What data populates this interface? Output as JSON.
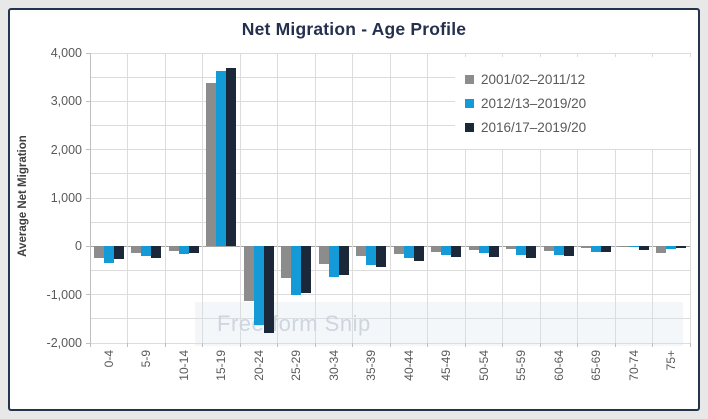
{
  "overlay": {
    "watermark": "Free-form Snip"
  },
  "chart_data": {
    "type": "bar",
    "title": "Net Migration - Age Profile",
    "ylabel": "Average Net Migration",
    "xlabel": "",
    "ylim": [
      -2000,
      4000
    ],
    "ytick_interval": 1000,
    "minor_grid_interval": 500,
    "grid": true,
    "legend_position": "top-right",
    "yticks": [
      {
        "value": 4000,
        "label": "4,000"
      },
      {
        "value": 3000,
        "label": "3,000"
      },
      {
        "value": 2000,
        "label": "2,000"
      },
      {
        "value": 1000,
        "label": "1,000"
      },
      {
        "value": 0,
        "label": "0"
      },
      {
        "value": -1000,
        "label": "-1,000"
      },
      {
        "value": -2000,
        "label": "-2,000"
      }
    ],
    "categories": [
      "0-4",
      "5-9",
      "10-14",
      "15-19",
      "20-24",
      "25-29",
      "30-34",
      "35-39",
      "40-44",
      "45-49",
      "50-54",
      "55-59",
      "60-64",
      "65-69",
      "70-74",
      "75+"
    ],
    "series": [
      {
        "name": "2001/02–2011/12",
        "color": "#8c8c8c",
        "values": [
          -240,
          -130,
          -100,
          3370,
          -1130,
          -650,
          -360,
          -210,
          -150,
          -110,
          -70,
          -60,
          -90,
          -40,
          -20,
          -130
        ]
      },
      {
        "name": "2012/13–2019/20",
        "color": "#149ad7",
        "values": [
          -350,
          -200,
          -150,
          3620,
          -1630,
          -1000,
          -640,
          -390,
          -250,
          -170,
          -130,
          -170,
          -170,
          -110,
          -20,
          -60
        ]
      },
      {
        "name": "2016/17–2019/20",
        "color": "#1b2839",
        "values": [
          -270,
          -250,
          -130,
          3680,
          -1790,
          -960,
          -600,
          -420,
          -310,
          -230,
          -230,
          -250,
          -190,
          -120,
          -75,
          -40
        ]
      }
    ]
  },
  "style": {
    "card_border": "#22344e",
    "grid_color": "#dcdcdc",
    "axis_line_color": "#bfbfbf",
    "zero_line_color": "#a3a3a3",
    "text_color": "#595959",
    "title_color": "#24304e"
  }
}
